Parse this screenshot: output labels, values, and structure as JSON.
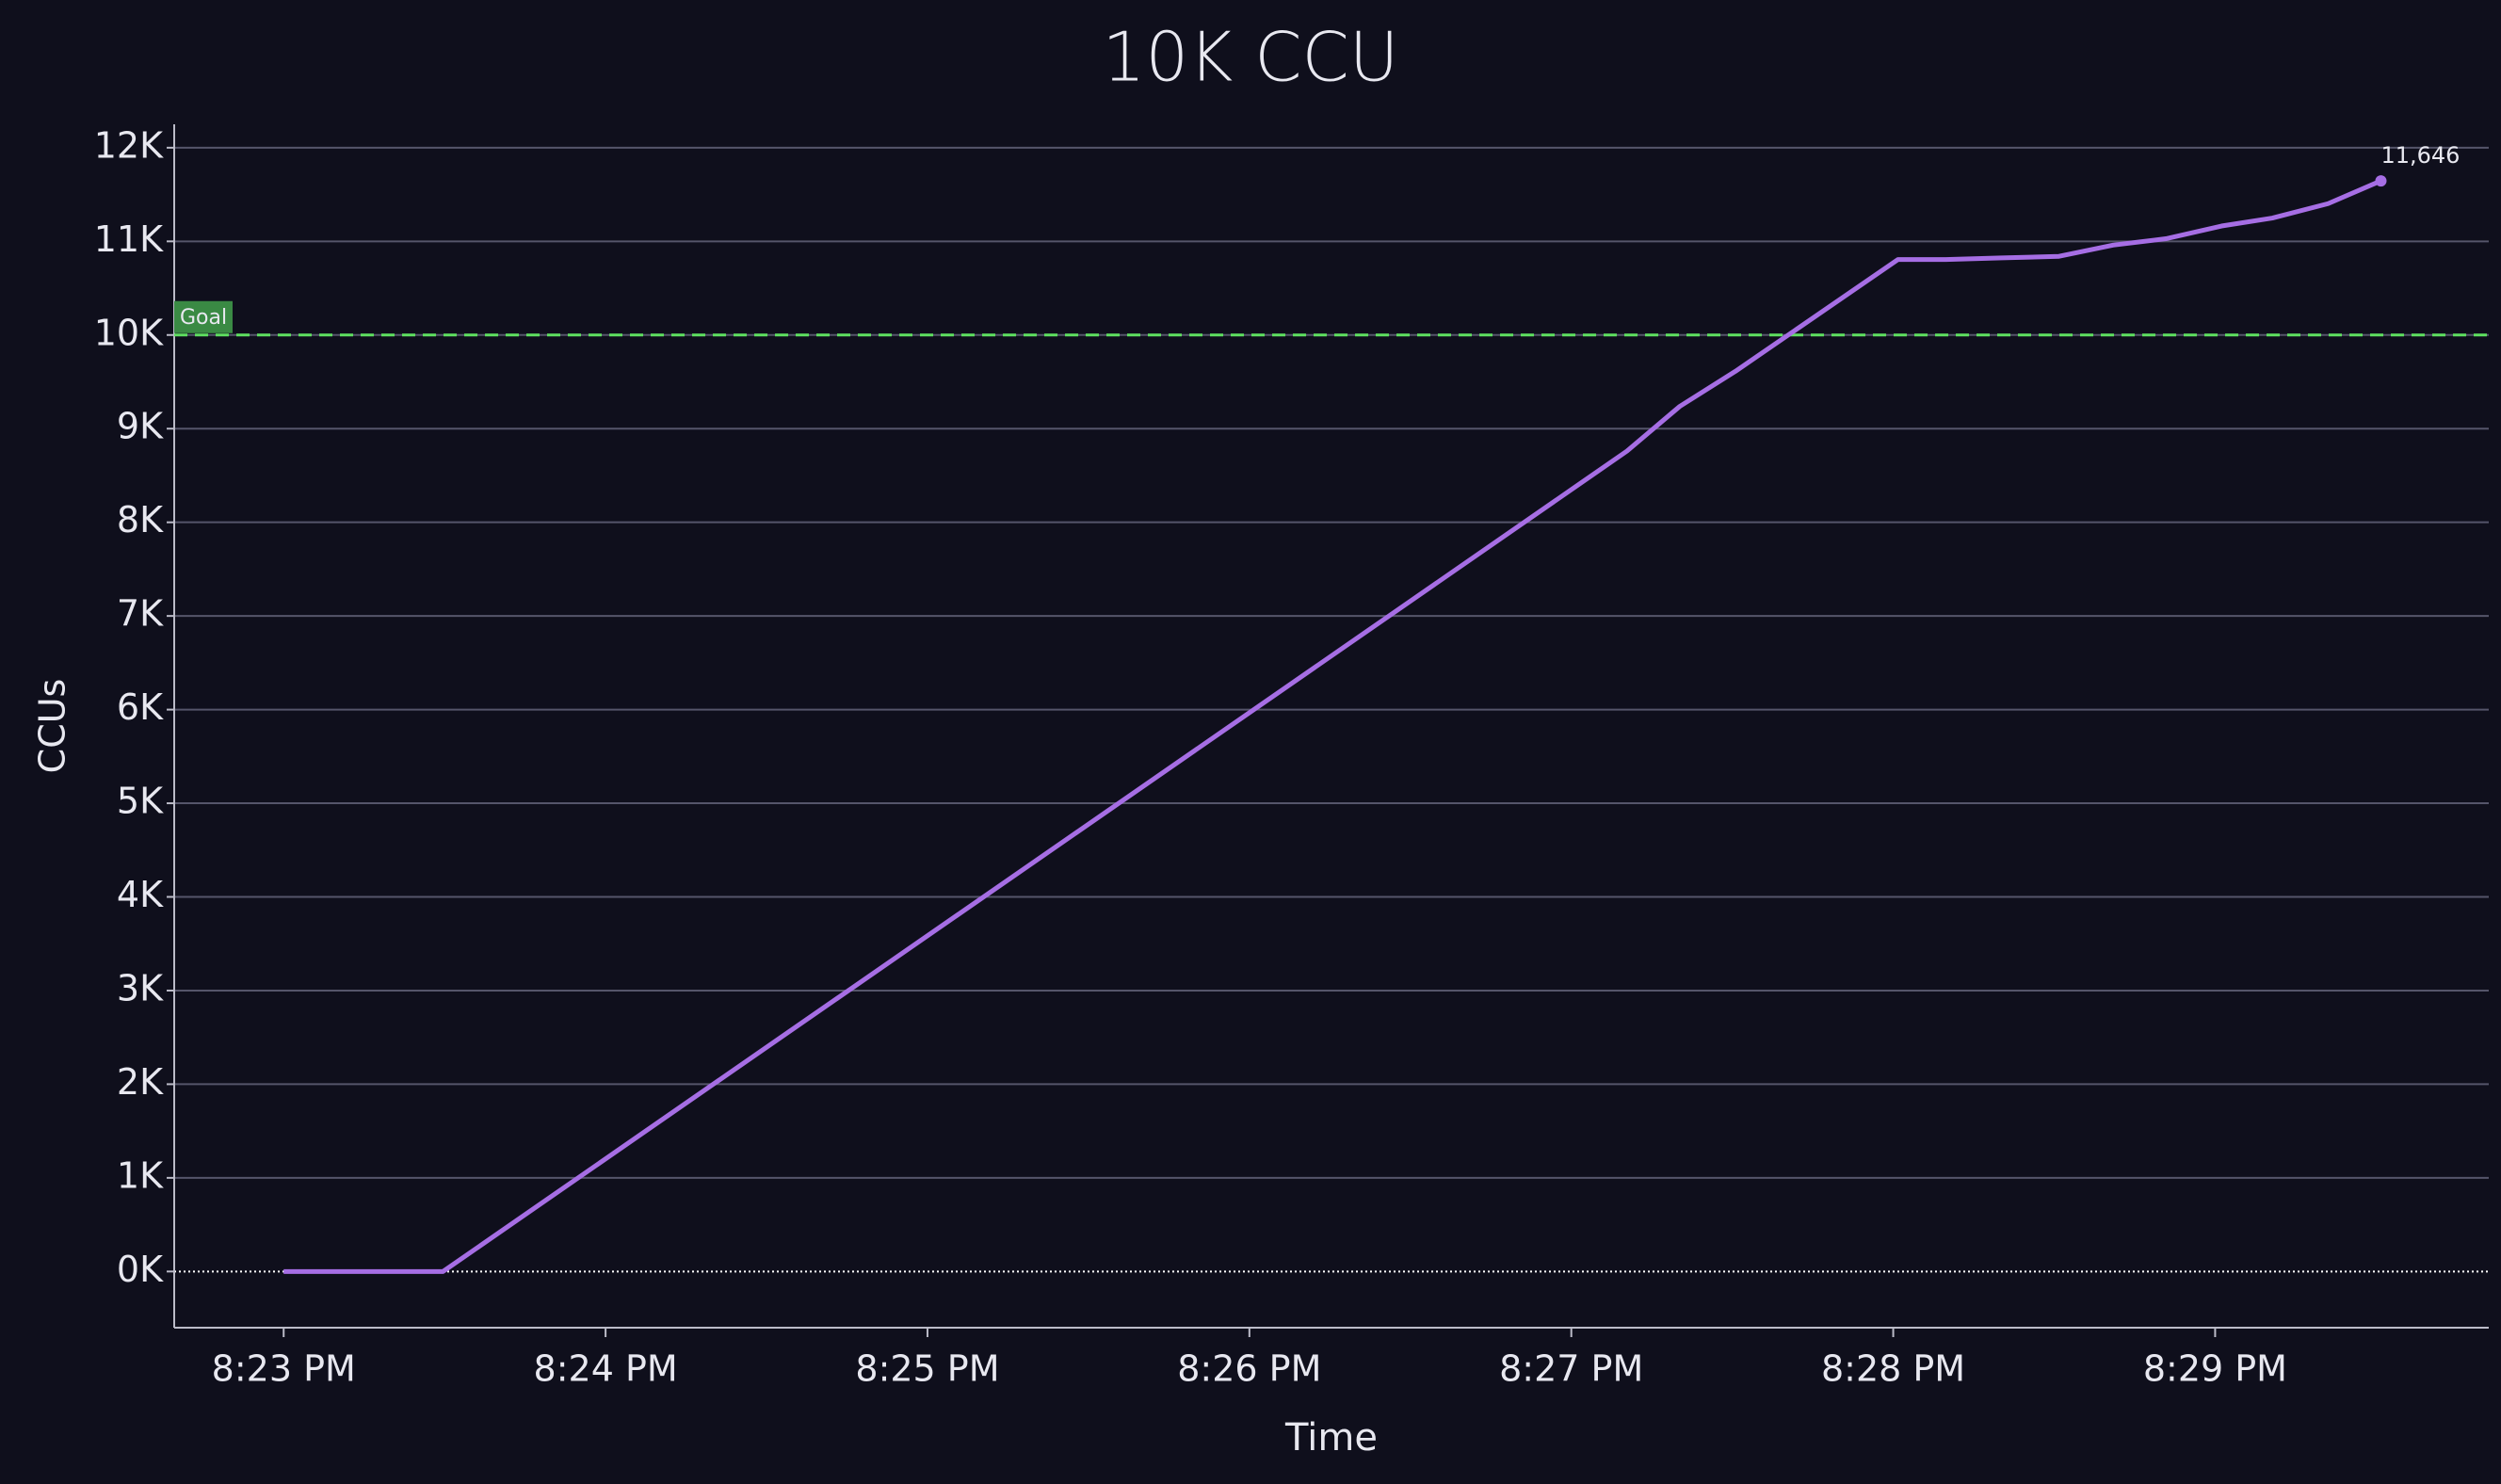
{
  "chart_data": {
    "type": "line",
    "title": "10K CCU",
    "x_label": "Time",
    "y_label": "CCUs",
    "x": [
      23,
      23.495,
      27.173,
      27.337,
      27.51,
      28.015,
      28.163,
      28.337,
      28.515,
      28.683,
      28.847,
      29.02,
      29.178,
      29.351,
      29.515
    ],
    "values": [
      0,
      0,
      8761,
      9238,
      9613,
      10806,
      10806,
      10823,
      10840,
      10960,
      11028,
      11164,
      11249,
      11403,
      11646
    ],
    "value_labels": [
      null,
      null,
      null,
      null,
      null,
      null,
      null,
      null,
      null,
      null,
      null,
      null,
      null,
      null,
      "11,646"
    ],
    "color": "#a66ee4",
    "xlim": [
      22.66,
      29.85
    ],
    "xticks": [
      {
        "value": 23,
        "label": "8:23 PM"
      },
      {
        "value": 24,
        "label": "8:24 PM"
      },
      {
        "value": 25,
        "label": "8:25 PM"
      },
      {
        "value": 26,
        "label": "8:26 PM"
      },
      {
        "value": 27,
        "label": "8:27 PM"
      },
      {
        "value": 28,
        "label": "8:28 PM"
      },
      {
        "value": 29,
        "label": "8:29 PM"
      }
    ],
    "ylim": [
      -600,
      12250
    ],
    "yticks": [
      {
        "value": 0,
        "label": "0K"
      },
      {
        "value": 1000,
        "label": "1K"
      },
      {
        "value": 2000,
        "label": "2K"
      },
      {
        "value": 3000,
        "label": "3K"
      },
      {
        "value": 4000,
        "label": "4K"
      },
      {
        "value": 5000,
        "label": "5K"
      },
      {
        "value": 6000,
        "label": "6K"
      },
      {
        "value": 7000,
        "label": "7K"
      },
      {
        "value": 8000,
        "label": "8K"
      },
      {
        "value": 9000,
        "label": "9K"
      },
      {
        "value": 10000,
        "label": "10K"
      },
      {
        "value": 11000,
        "label": "11K"
      },
      {
        "value": 12000,
        "label": "12K"
      }
    ],
    "grid": true,
    "goal": {
      "value": 10000,
      "label": "Goal",
      "color": "#5fe060"
    }
  }
}
